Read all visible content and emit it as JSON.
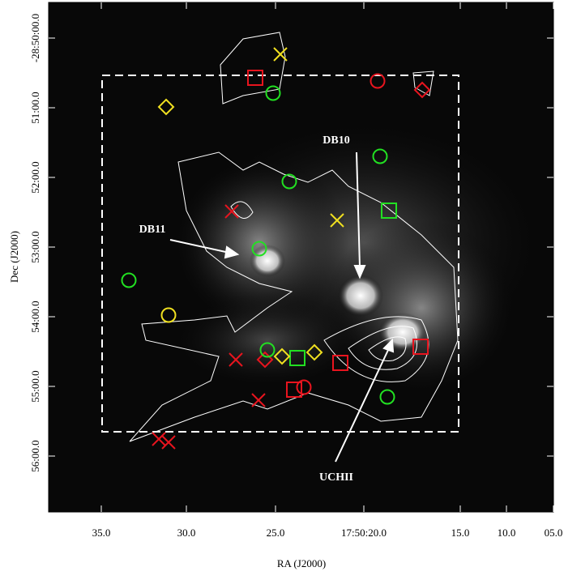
{
  "axes": {
    "x_title": "RA (J2000)",
    "y_title": "Dec (J2000)",
    "x_ticks": [
      "35.0",
      "30.0",
      "25.0",
      "17:50:20.0",
      "15.0",
      "10.0",
      "05.0"
    ],
    "y_ticks": [
      "-28:50:00.0",
      "51:00.0",
      "52:00.0",
      "53:00.0",
      "54:00.0",
      "55:00.0",
      "56:00.0"
    ]
  },
  "annotations": [
    "DB10",
    "DB11",
    "UCHII"
  ]
}
